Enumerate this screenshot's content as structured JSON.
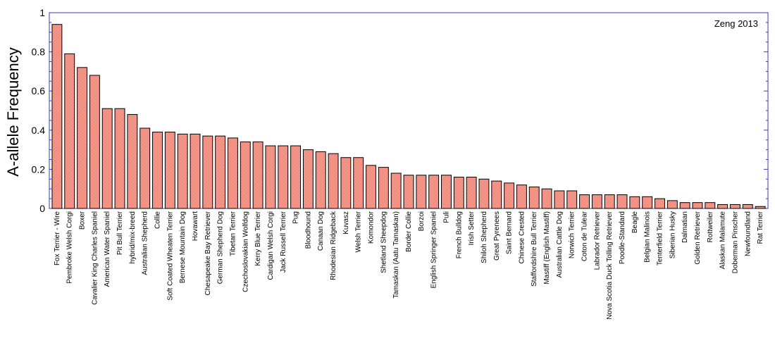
{
  "chart_data": {
    "type": "bar",
    "title": "",
    "annotation": "Zeng 2013",
    "xlabel": "",
    "ylabel": "A-allele Frequency",
    "ylim": [
      0,
      1
    ],
    "yticks": [
      0,
      0.2,
      0.4,
      0.6,
      0.8,
      1
    ],
    "ytick_labels": [
      "0",
      "0.2",
      "0.4",
      "0.6",
      "0.8",
      "1"
    ],
    "grid": false,
    "colors": {
      "bar_fill": "#f4978a",
      "bar_stroke": "#000000",
      "frame": "#3a3acc"
    },
    "categories": [
      "Fox Terrier - Wire",
      "Pembroke Welsh Corgi",
      "Boxer",
      "Cavalier King Charles Spaniel",
      "American Water Spaniel",
      "Pit Bull Terrier",
      "hybrid/mix-breed",
      "Australian Shepherd",
      "Collie",
      "Soft Coated Wheaten Terrier",
      "Bernese Mountain Dog",
      "Hovawart",
      "Chesapeake Bay Retriever",
      "German Shepherd Dog",
      "Tibetan Terrier",
      "Czechoslovakian Wolfdog",
      "Kerry Blue Terrier",
      "Cardigan Welsh Corgi",
      "Jack Russell Terrier",
      "Pug",
      "Bloodhound",
      "Canaan Dog",
      "Rhodesian Ridgeback",
      "Kuvasz",
      "Welsh Terrier",
      "Komondor",
      "Shetland Sheepdog",
      "Tamaskan (Aatu Tamaskan)",
      "Border Collie",
      "Borzoi",
      "English Springer Spaniel",
      "Puli",
      "French Bulldog",
      "Irish Setter",
      "Shiloh Shepherd",
      "Great Pyrenees",
      "Saint Bernard",
      "Chinese Crested",
      "Staffordshire Bull Terrier",
      "Mastiff (English Mastiff)",
      "Australian Cattle Dog",
      "Norwich Terrier",
      "Coton de Tulear",
      "Labrador Retriever",
      "Nova Scotia Duck Tolling Retriever",
      "Poodle-Standard",
      "Beagle",
      "Belgian Malinois",
      "Tenterfield Terrier",
      "Siberian Husky",
      "Dalmatian",
      "Golden Retriever",
      "Rottweiler",
      "Alaskan Malamute",
      "Doberman Pinscher",
      "Newfoundland",
      "Rat Terrier"
    ],
    "values": [
      0.94,
      0.79,
      0.72,
      0.68,
      0.51,
      0.51,
      0.48,
      0.41,
      0.39,
      0.39,
      0.38,
      0.38,
      0.37,
      0.37,
      0.36,
      0.34,
      0.34,
      0.32,
      0.32,
      0.32,
      0.3,
      0.29,
      0.28,
      0.26,
      0.26,
      0.22,
      0.21,
      0.18,
      0.17,
      0.17,
      0.17,
      0.17,
      0.16,
      0.16,
      0.15,
      0.14,
      0.13,
      0.12,
      0.11,
      0.1,
      0.09,
      0.09,
      0.07,
      0.07,
      0.07,
      0.07,
      0.06,
      0.06,
      0.05,
      0.04,
      0.03,
      0.03,
      0.03,
      0.02,
      0.02,
      0.02,
      0.01
    ]
  }
}
